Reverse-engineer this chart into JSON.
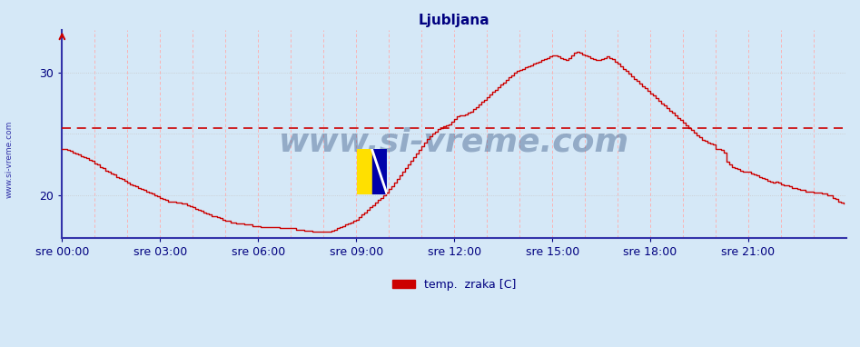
{
  "title": "Ljubljana",
  "ylabel_side": "www.si-vreme.com",
  "legend_label": "temp.  zraka [C]",
  "bg_color": "#d5e8f7",
  "line_color": "#cc0000",
  "grid_color_h": "#c8c8c8",
  "grid_color_v": "#ffaaaa",
  "avg_line_color": "#cc0000",
  "avg_value": 25.5,
  "ylim_min": 16.5,
  "ylim_max": 33.5,
  "ytick_vals": [
    20,
    30
  ],
  "ytick_labels": [
    "20",
    "30"
  ],
  "xlabel_color": "#000080",
  "title_color": "#000080",
  "n_points": 288,
  "x_tick_hours": [
    0,
    3,
    6,
    9,
    12,
    15,
    18,
    21
  ],
  "x_tick_labels": [
    "sre 00:00",
    "sre 03:00",
    "sre 06:00",
    "sre 09:00",
    "sre 12:00",
    "sre 15:00",
    "sre 18:00",
    "sre 21:00"
  ],
  "watermark_text": "www.si-vreme.com",
  "watermark_color": "#1a3a6e",
  "watermark_alpha": 0.35,
  "spine_color": "#3333aa",
  "temp_data": [
    23.8,
    23.8,
    23.7,
    23.6,
    23.5,
    23.4,
    23.3,
    23.2,
    23.1,
    23.0,
    22.9,
    22.8,
    22.6,
    22.5,
    22.3,
    22.2,
    22.0,
    21.9,
    21.8,
    21.7,
    21.5,
    21.4,
    21.3,
    21.2,
    21.0,
    20.9,
    20.8,
    20.7,
    20.6,
    20.5,
    20.4,
    20.3,
    20.2,
    20.1,
    20.0,
    19.9,
    19.8,
    19.7,
    19.6,
    19.5,
    19.5,
    19.5,
    19.4,
    19.4,
    19.3,
    19.3,
    19.2,
    19.1,
    19.0,
    18.9,
    18.8,
    18.7,
    18.6,
    18.5,
    18.4,
    18.3,
    18.3,
    18.2,
    18.1,
    18.0,
    17.9,
    17.9,
    17.8,
    17.8,
    17.7,
    17.7,
    17.7,
    17.6,
    17.6,
    17.6,
    17.5,
    17.5,
    17.5,
    17.4,
    17.4,
    17.4,
    17.4,
    17.4,
    17.4,
    17.4,
    17.3,
    17.3,
    17.3,
    17.3,
    17.3,
    17.3,
    17.2,
    17.2,
    17.2,
    17.1,
    17.1,
    17.1,
    17.0,
    17.0,
    17.0,
    17.0,
    17.0,
    17.0,
    17.0,
    17.1,
    17.2,
    17.3,
    17.4,
    17.5,
    17.6,
    17.7,
    17.8,
    17.9,
    18.0,
    18.2,
    18.4,
    18.6,
    18.8,
    19.0,
    19.2,
    19.4,
    19.6,
    19.8,
    20.0,
    20.2,
    20.5,
    20.7,
    21.0,
    21.3,
    21.6,
    21.9,
    22.2,
    22.5,
    22.8,
    23.1,
    23.4,
    23.7,
    24.0,
    24.3,
    24.6,
    24.8,
    25.0,
    25.2,
    25.4,
    25.5,
    25.6,
    25.7,
    25.8,
    26.0,
    26.2,
    26.4,
    26.5,
    26.5,
    26.6,
    26.7,
    26.8,
    27.0,
    27.2,
    27.4,
    27.6,
    27.8,
    28.0,
    28.2,
    28.4,
    28.6,
    28.8,
    29.0,
    29.2,
    29.4,
    29.6,
    29.8,
    30.0,
    30.1,
    30.2,
    30.3,
    30.4,
    30.5,
    30.6,
    30.7,
    30.8,
    30.9,
    31.0,
    31.1,
    31.2,
    31.3,
    31.4,
    31.4,
    31.3,
    31.2,
    31.1,
    31.0,
    31.2,
    31.4,
    31.6,
    31.7,
    31.6,
    31.5,
    31.4,
    31.3,
    31.2,
    31.1,
    31.0,
    31.0,
    31.1,
    31.2,
    31.3,
    31.2,
    31.1,
    30.9,
    30.7,
    30.5,
    30.3,
    30.1,
    29.9,
    29.7,
    29.5,
    29.3,
    29.1,
    28.9,
    28.7,
    28.5,
    28.3,
    28.1,
    27.9,
    27.7,
    27.5,
    27.3,
    27.1,
    26.9,
    26.7,
    26.5,
    26.3,
    26.1,
    25.9,
    25.7,
    25.5,
    25.3,
    25.1,
    24.9,
    24.7,
    24.5,
    24.4,
    24.3,
    24.2,
    24.1,
    23.8,
    23.8,
    23.7,
    23.5,
    22.7,
    22.5,
    22.3,
    22.2,
    22.1,
    22.0,
    21.9,
    21.9,
    21.9,
    21.8,
    21.7,
    21.6,
    21.5,
    21.4,
    21.3,
    21.2,
    21.1,
    21.0,
    21.1,
    21.0,
    20.9,
    20.8,
    20.8,
    20.7,
    20.6,
    20.6,
    20.5,
    20.4,
    20.4,
    20.3,
    20.3,
    20.3,
    20.2,
    20.2,
    20.2,
    20.1,
    20.1,
    20.0,
    20.0,
    19.8,
    19.7,
    19.5,
    19.4,
    19.3
  ]
}
